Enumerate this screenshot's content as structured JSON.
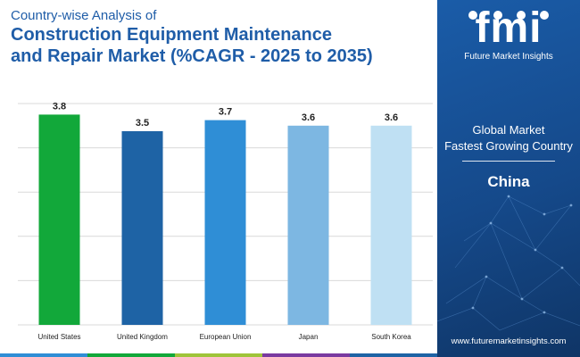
{
  "header": {
    "subtitle": "Country-wise Analysis of",
    "title_line1": "Construction Equipment Maintenance",
    "title_line2": "and Repair Market (%CAGR - 2025 to 2035)"
  },
  "chart_data": {
    "type": "bar",
    "categories": [
      "United States",
      "United Kingdom",
      "European Union",
      "Japan",
      "South Korea"
    ],
    "values": [
      3.8,
      3.5,
      3.7,
      3.6,
      3.6
    ],
    "value_labels": [
      "3.8",
      "3.5",
      "3.7",
      "3.6",
      "3.6"
    ],
    "colors": [
      "#12a83a",
      "#1e63a5",
      "#2f8ed6",
      "#7db7e2",
      "#bfe0f3"
    ],
    "ylim": [
      0,
      4
    ],
    "grid": true,
    "legend": "none"
  },
  "panel": {
    "logo_letters": "fmi",
    "logo_name": "Future Market Insights",
    "label_line1": "Global Market",
    "label_line2": "Fastest Growing Country",
    "country": "China",
    "url": "www.futuremarketinsights.com"
  },
  "colors": {
    "title": "#1f5da8",
    "panel": "#1a5ca8",
    "bottom_bar": [
      "#2f8ed6",
      "#12a83a",
      "#9fc43a",
      "#7a3aa0",
      "#1e63a5"
    ]
  }
}
